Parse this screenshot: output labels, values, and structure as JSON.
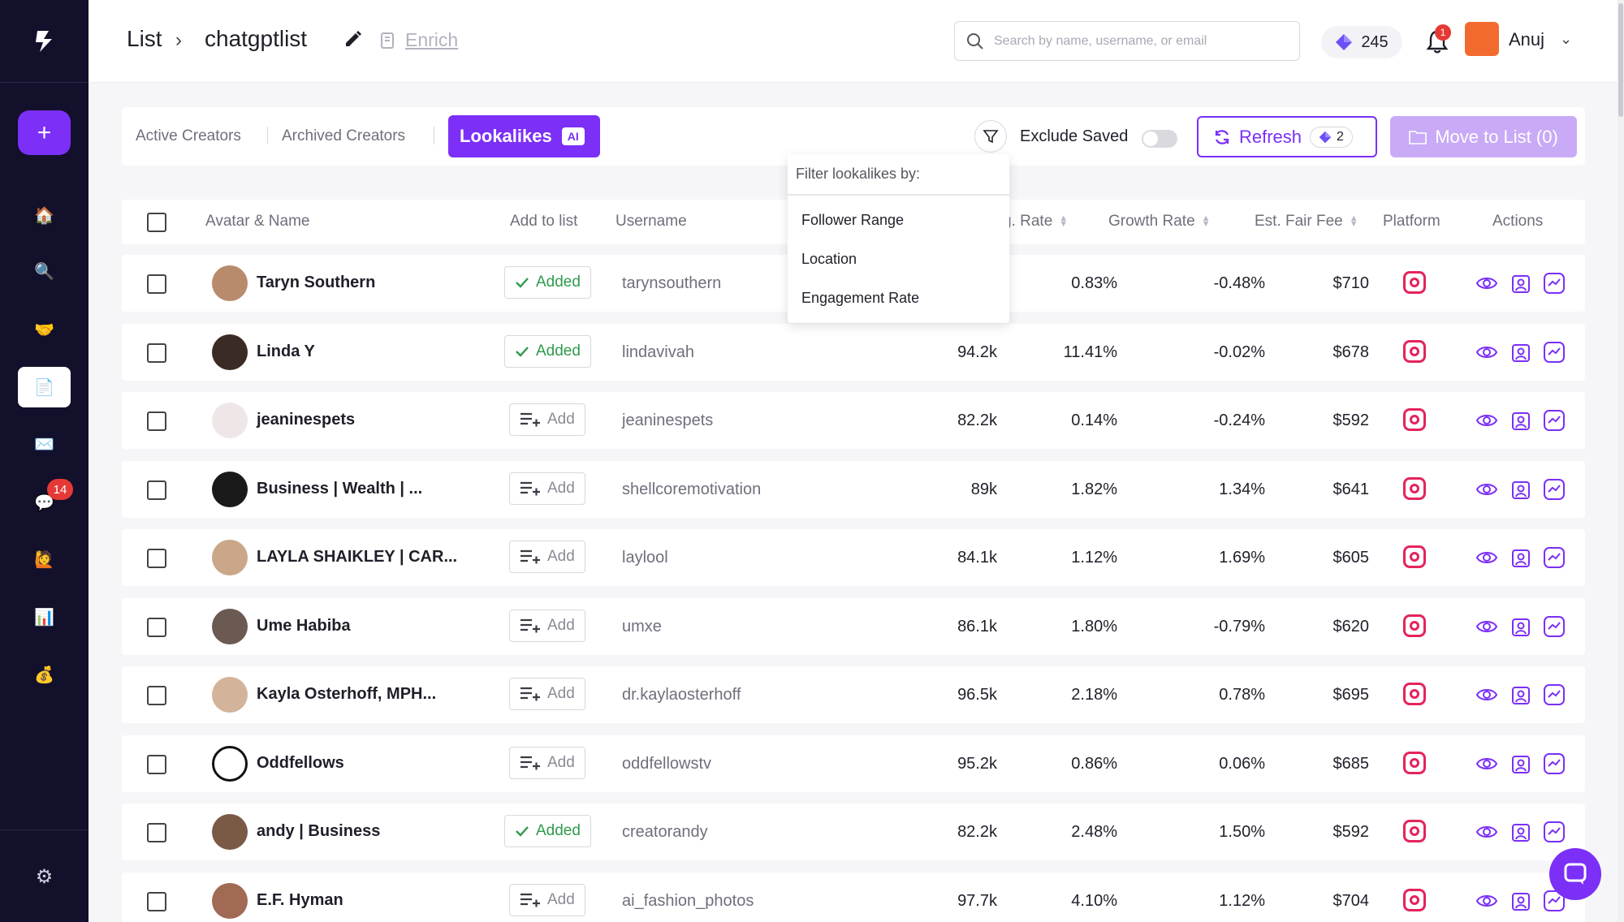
{
  "sidebar": {
    "plus_label": "+",
    "badge": "14",
    "items": [
      "home-icon",
      "search-icon",
      "handshake-icon",
      "document-icon",
      "mail-icon",
      "chat-icon",
      "creator-icon",
      "chart-icon",
      "money-bag-icon"
    ],
    "settings": "gear-icon"
  },
  "breadcrumb": {
    "root": "List",
    "current": "chatgptlist",
    "enrich": "Enrich"
  },
  "search": {
    "placeholder": "Search by name, username, or email"
  },
  "credits": "245",
  "notifications": "1",
  "user": {
    "name": "Anuj"
  },
  "tabs": [
    {
      "label": "Active Creators"
    },
    {
      "label": "Archived Creators"
    },
    {
      "label": "Lookalikes",
      "badge": "AI"
    }
  ],
  "toolbar": {
    "exclude_saved": "Exclude Saved",
    "refresh": "Refresh",
    "refresh_count": "2",
    "move_to_list": "Move to List (0)"
  },
  "filter_dropdown": {
    "header": "Filter lookalikes by:",
    "options": [
      "Follower Range",
      "Location",
      "Engagement Rate"
    ]
  },
  "table": {
    "headers": {
      "avatar_name": "Avatar & Name",
      "add_to_list": "Add to list",
      "username": "Username",
      "eng_rate": "g. Rate",
      "growth_rate": "Growth Rate",
      "fair_fee": "Est. Fair Fee",
      "platform": "Platform",
      "actions": "Actions"
    },
    "add_label": "Add",
    "added_label": "Added",
    "rows": [
      {
        "name": "Taryn Southern",
        "added": true,
        "username": "tarynsouthern",
        "followers": "",
        "eng": "0.83%",
        "growth": "-0.48%",
        "fee": "$710",
        "add": "Added"
      },
      {
        "name": "Linda Y",
        "added": true,
        "username": "lindavivah",
        "followers": "94.2k",
        "eng": "11.41%",
        "growth": "-0.02%",
        "fee": "$678",
        "add": "Added"
      },
      {
        "name": "jeaninespets",
        "added": false,
        "username": "jeaninespets",
        "followers": "82.2k",
        "eng": "0.14%",
        "growth": "-0.24%",
        "fee": "$592",
        "add": "Add"
      },
      {
        "name": "Business | Wealth | ...",
        "added": false,
        "username": "shellcoremotivation",
        "followers": "89k",
        "eng": "1.82%",
        "growth": "1.34%",
        "fee": "$641",
        "add": "Add"
      },
      {
        "name": "LAYLA SHAIKLEY | CAR...",
        "added": false,
        "username": "laylool",
        "followers": "84.1k",
        "eng": "1.12%",
        "growth": "1.69%",
        "fee": "$605",
        "add": "Add"
      },
      {
        "name": "Ume Habiba",
        "added": false,
        "username": "umxe",
        "followers": "86.1k",
        "eng": "1.80%",
        "growth": "-0.79%",
        "fee": "$620",
        "add": "Add"
      },
      {
        "name": "Kayla Osterhoff, MPH...",
        "added": false,
        "username": "dr.kaylaosterhoff",
        "followers": "96.5k",
        "eng": "2.18%",
        "growth": "0.78%",
        "fee": "$695",
        "add": "Add"
      },
      {
        "name": "Oddfellows",
        "added": false,
        "username": "oddfellowstv",
        "followers": "95.2k",
        "eng": "0.86%",
        "growth": "0.06%",
        "fee": "$685",
        "add": "Add"
      },
      {
        "name": "andy | Business",
        "added": true,
        "username": "creatorandy",
        "followers": "82.2k",
        "eng": "2.48%",
        "growth": "1.50%",
        "fee": "$592",
        "add": "Added"
      },
      {
        "name": "E.F. Hyman",
        "added": false,
        "username": "ai_fashion_photos",
        "followers": "97.7k",
        "eng": "4.10%",
        "growth": "1.12%",
        "fee": "$704",
        "add": "Add"
      }
    ]
  },
  "colors": {
    "accent": "#7b2ff7",
    "sidebar_bg": "#13102b",
    "added_green": "#2e9a4b",
    "instagram": "#e4245c"
  }
}
